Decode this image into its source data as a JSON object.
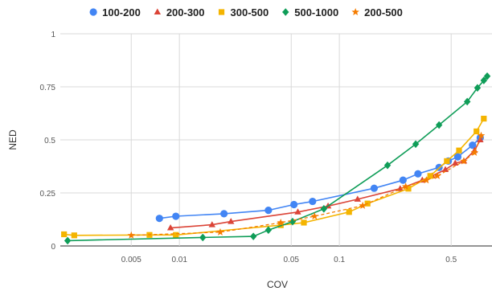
{
  "chart_data": {
    "type": "line",
    "xlabel": "COV",
    "ylabel": "NED",
    "x_scale": "log",
    "xlim": [
      0.0018,
      0.9
    ],
    "ylim": [
      0,
      1
    ],
    "x_ticks": [
      {
        "value": 0.005,
        "label": "0.005"
      },
      {
        "value": 0.01,
        "label": "0.01"
      },
      {
        "value": 0.05,
        "label": "0.05"
      },
      {
        "value": 0.1,
        "label": "0.1"
      },
      {
        "value": 0.5,
        "label": "0.5"
      }
    ],
    "y_ticks": [
      {
        "value": 0,
        "label": "0"
      },
      {
        "value": 0.25,
        "label": "0.25"
      },
      {
        "value": 0.5,
        "label": "0.5"
      },
      {
        "value": 0.75,
        "label": "0.75"
      },
      {
        "value": 1,
        "label": "1"
      }
    ],
    "grid": true,
    "legend_position": "top",
    "series": [
      {
        "name": "100-200",
        "color": "#4285f4",
        "marker": "circle",
        "dashed": false,
        "points": [
          [
            0.0075,
            0.13
          ],
          [
            0.0095,
            0.14
          ],
          [
            0.019,
            0.152
          ],
          [
            0.036,
            0.168
          ],
          [
            0.052,
            0.195
          ],
          [
            0.068,
            0.21
          ],
          [
            0.165,
            0.272
          ],
          [
            0.25,
            0.31
          ],
          [
            0.31,
            0.34
          ],
          [
            0.42,
            0.37
          ],
          [
            0.48,
            0.4
          ],
          [
            0.55,
            0.42
          ],
          [
            0.68,
            0.475
          ],
          [
            0.76,
            0.51
          ]
        ]
      },
      {
        "name": "200-300",
        "color": "#db4437",
        "marker": "triangle",
        "dashed": false,
        "points": [
          [
            0.0088,
            0.085
          ],
          [
            0.016,
            0.1
          ],
          [
            0.021,
            0.115
          ],
          [
            0.055,
            0.16
          ],
          [
            0.085,
            0.188
          ],
          [
            0.13,
            0.22
          ],
          [
            0.24,
            0.27
          ],
          [
            0.33,
            0.31
          ],
          [
            0.38,
            0.33
          ],
          [
            0.46,
            0.36
          ],
          [
            0.53,
            0.39
          ],
          [
            0.6,
            0.4
          ],
          [
            0.7,
            0.45
          ],
          [
            0.76,
            0.5
          ]
        ]
      },
      {
        "name": "300-500",
        "color": "#f4b400",
        "marker": "square",
        "dashed": false,
        "points": [
          [
            0.0019,
            0.055
          ],
          [
            0.0022,
            0.05
          ],
          [
            0.0065,
            0.052
          ],
          [
            0.0095,
            0.052
          ],
          [
            0.043,
            0.098
          ],
          [
            0.06,
            0.11
          ],
          [
            0.115,
            0.16
          ],
          [
            0.15,
            0.2
          ],
          [
            0.27,
            0.27
          ],
          [
            0.37,
            0.33
          ],
          [
            0.47,
            0.4
          ],
          [
            0.56,
            0.45
          ],
          [
            0.72,
            0.54
          ],
          [
            0.8,
            0.6
          ]
        ]
      },
      {
        "name": "500-1000",
        "color": "#0f9d58",
        "marker": "diamond",
        "dashed": false,
        "points": [
          [
            0.002,
            0.025
          ],
          [
            0.014,
            0.04
          ],
          [
            0.029,
            0.045
          ],
          [
            0.036,
            0.075
          ],
          [
            0.051,
            0.115
          ],
          [
            0.08,
            0.175
          ],
          [
            0.2,
            0.38
          ],
          [
            0.3,
            0.48
          ],
          [
            0.42,
            0.57
          ],
          [
            0.63,
            0.68
          ],
          [
            0.73,
            0.745
          ],
          [
            0.8,
            0.78
          ],
          [
            0.84,
            0.8
          ]
        ]
      },
      {
        "name": "200-500",
        "color": "#f57c00",
        "marker": "star",
        "dashed": true,
        "points": [
          [
            0.005,
            0.05
          ],
          [
            0.018,
            0.065
          ],
          [
            0.043,
            0.11
          ],
          [
            0.07,
            0.14
          ],
          [
            0.14,
            0.19
          ],
          [
            0.26,
            0.28
          ],
          [
            0.35,
            0.31
          ],
          [
            0.41,
            0.33
          ],
          [
            0.6,
            0.4
          ],
          [
            0.7,
            0.44
          ],
          [
            0.77,
            0.52
          ]
        ]
      }
    ]
  }
}
